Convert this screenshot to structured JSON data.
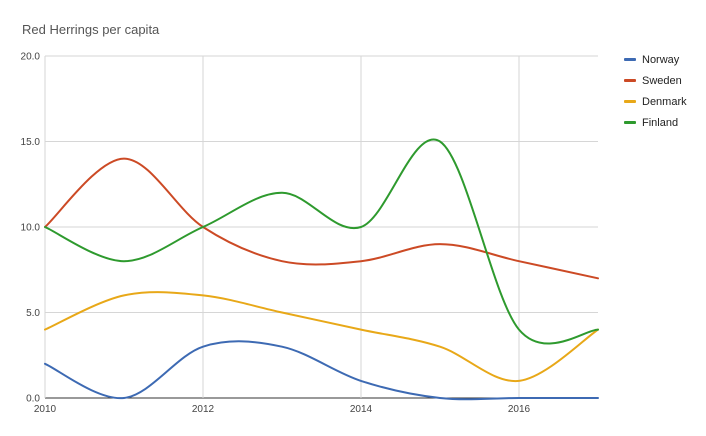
{
  "chart_data": {
    "type": "line",
    "title": "Red Herrings per capita",
    "xlabel": "",
    "ylabel": "",
    "x": [
      2010,
      2011,
      2012,
      2013,
      2014,
      2015,
      2016,
      2017
    ],
    "xlim": [
      2010,
      2017
    ],
    "ylim": [
      0,
      20
    ],
    "x_ticks": [
      "2010",
      "2012",
      "2014",
      "2016"
    ],
    "y_ticks": [
      "0.0",
      "5.0",
      "10.0",
      "15.0",
      "20.0"
    ],
    "smooth": true,
    "grid": true,
    "legend_position": "right",
    "series": [
      {
        "name": "Norway",
        "color": "#3d6ab3",
        "values": [
          2,
          0,
          3,
          3,
          1,
          0,
          0,
          0
        ]
      },
      {
        "name": "Sweden",
        "color": "#cc4a25",
        "values": [
          10,
          14,
          10,
          8,
          8,
          9,
          8,
          7
        ]
      },
      {
        "name": "Denmark",
        "color": "#e8a818",
        "values": [
          4,
          6,
          6,
          5,
          4,
          3,
          1,
          4
        ]
      },
      {
        "name": "Finland",
        "color": "#2e9a2e",
        "values": [
          10,
          8,
          10,
          12,
          10,
          15,
          4,
          4
        ]
      }
    ]
  }
}
